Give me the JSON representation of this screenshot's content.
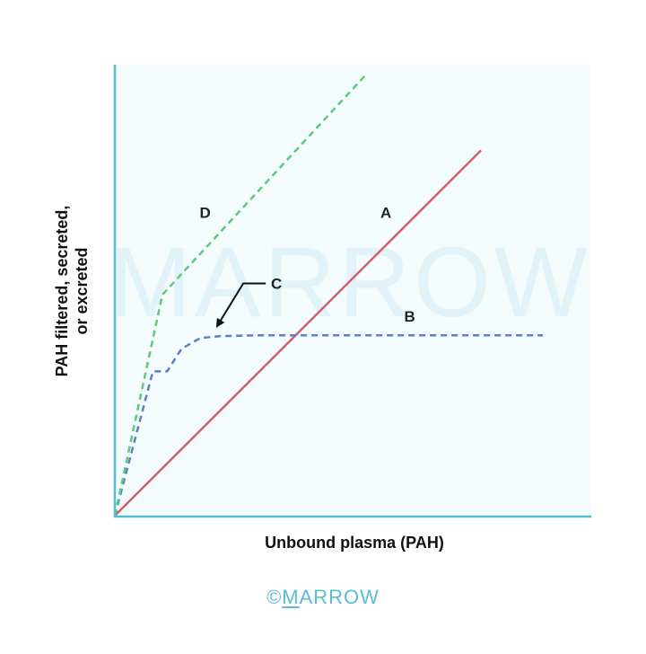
{
  "chart_data": {
    "type": "line",
    "xlabel": "Unbound plasma (PAH)",
    "ylabel_lines": [
      "PAH filtered, secreted,",
      "or excreted"
    ],
    "xlim": [
      0,
      100
    ],
    "ylim": [
      0,
      100
    ],
    "grid": false,
    "legend": "none",
    "series": [
      {
        "name": "A",
        "label": "A",
        "color": "#d0606a",
        "style": "solid",
        "x": [
          0,
          77
        ],
        "y": [
          0,
          81
        ],
        "label_at": [
          57,
          66
        ]
      },
      {
        "name": "B",
        "label": "B",
        "color": "#5b7fc2",
        "style": "dashed",
        "x": [
          0,
          4,
          8,
          11,
          14,
          18,
          22,
          30,
          50,
          70,
          90
        ],
        "y": [
          0,
          16,
          32,
          32,
          37,
          39.4,
          39.8,
          40,
          40,
          40,
          40
        ],
        "label_at": [
          62,
          43
        ]
      },
      {
        "name": "D",
        "label": "D",
        "color": "#5cc97d",
        "style": "dashed",
        "x": [
          0,
          10,
          53
        ],
        "y": [
          0,
          49,
          98
        ],
        "label_at": [
          19,
          66
        ]
      }
    ],
    "annotations": [
      {
        "text": "C",
        "text_at": [
          34,
          51
        ],
        "arrow_from": [
          27,
          51.5
        ],
        "arrow_to": [
          21.5,
          42
        ]
      }
    ]
  },
  "watermark": "MARROW",
  "footer": {
    "copyright": "©",
    "brand": "M",
    "brand_rest": "ARROW"
  },
  "colors": {
    "axis": "#4fc0cc",
    "plot_bg": "#f3fbfd",
    "footer": "#5bbcd6"
  }
}
